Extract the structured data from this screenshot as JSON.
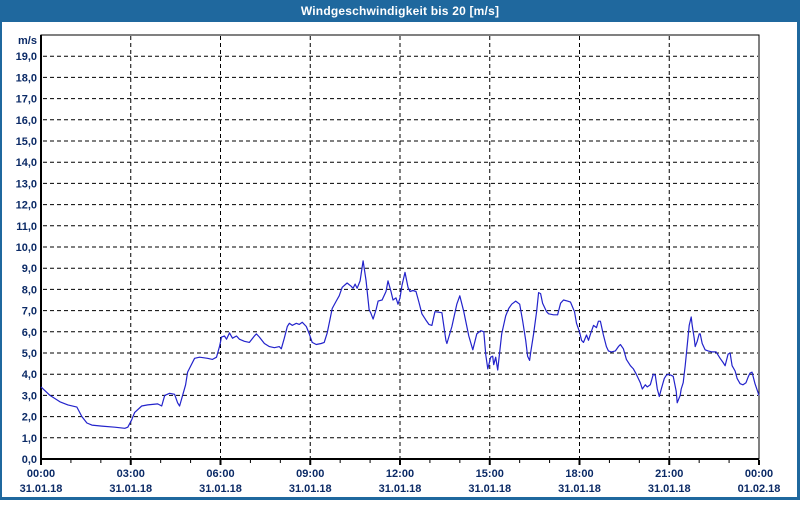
{
  "window": {
    "title": "Windgeschwindigkeit bis 20 [m/s]"
  },
  "colors": {
    "titlebar_bg": "#1f689e",
    "window_border": "#1f689e",
    "plot_bg": "#ffffff",
    "grid_color": "#000000",
    "axis_color": "#000000",
    "label_color": "#0b2a66",
    "line_color": "#2323cb"
  },
  "chart_data": {
    "type": "line",
    "title": "Windgeschwindigkeit bis 20 [m/s]",
    "ylabel": "m/s",
    "xlabel": "",
    "ylim": [
      0,
      20
    ],
    "x_minutes_range": [
      0,
      1440
    ],
    "grid": "dashed",
    "legend": "none",
    "y_unit_label": "m/s",
    "y_tick_labels": [
      "0,0",
      "1,0",
      "2,0",
      "3,0",
      "4,0",
      "5,0",
      "6,0",
      "7,0",
      "8,0",
      "9,0",
      "10,0",
      "11,0",
      "12,0",
      "13,0",
      "14,0",
      "15,0",
      "16,0",
      "17,0",
      "18,0",
      "19,0"
    ],
    "x_ticks": [
      {
        "h": 0,
        "time": "00:00",
        "date": "31.01.18"
      },
      {
        "h": 3,
        "time": "03:00",
        "date": "31.01.18"
      },
      {
        "h": 6,
        "time": "06:00",
        "date": "31.01.18"
      },
      {
        "h": 9,
        "time": "09:00",
        "date": "31.01.18"
      },
      {
        "h": 12,
        "time": "12:00",
        "date": "31.01.18"
      },
      {
        "h": 15,
        "time": "15:00",
        "date": "31.01.18"
      },
      {
        "h": 18,
        "time": "18:00",
        "date": "31.01.18"
      },
      {
        "h": 21,
        "time": "21:00",
        "date": "31.01.18"
      },
      {
        "h": 24,
        "time": "00:00",
        "date": "01.02.18"
      }
    ],
    "series": [
      {
        "name": "Windgeschwindigkeit",
        "points": [
          [
            0,
            3.4
          ],
          [
            18,
            3.0
          ],
          [
            38,
            2.7
          ],
          [
            54,
            2.55
          ],
          [
            72,
            2.45
          ],
          [
            82,
            2.0
          ],
          [
            92,
            1.7
          ],
          [
            102,
            1.6
          ],
          [
            122,
            1.55
          ],
          [
            148,
            1.5
          ],
          [
            168,
            1.45
          ],
          [
            174,
            1.5
          ],
          [
            182,
            1.85
          ],
          [
            188,
            2.2
          ],
          [
            202,
            2.5
          ],
          [
            214,
            2.55
          ],
          [
            234,
            2.6
          ],
          [
            242,
            2.5
          ],
          [
            248,
            3.0
          ],
          [
            258,
            3.1
          ],
          [
            268,
            3.05
          ],
          [
            274,
            2.65
          ],
          [
            278,
            2.5
          ],
          [
            284,
            3.0
          ],
          [
            290,
            3.5
          ],
          [
            294,
            4.1
          ],
          [
            308,
            4.75
          ],
          [
            318,
            4.8
          ],
          [
            334,
            4.75
          ],
          [
            344,
            4.7
          ],
          [
            352,
            4.8
          ],
          [
            358,
            5.3
          ],
          [
            362,
            5.75
          ],
          [
            368,
            5.8
          ],
          [
            372,
            5.65
          ],
          [
            378,
            5.95
          ],
          [
            384,
            5.7
          ],
          [
            392,
            5.8
          ],
          [
            398,
            5.65
          ],
          [
            408,
            5.55
          ],
          [
            418,
            5.5
          ],
          [
            428,
            5.8
          ],
          [
            432,
            5.9
          ],
          [
            438,
            5.75
          ],
          [
            448,
            5.45
          ],
          [
            458,
            5.3
          ],
          [
            468,
            5.25
          ],
          [
            478,
            5.3
          ],
          [
            482,
            5.2
          ],
          [
            488,
            5.7
          ],
          [
            494,
            6.25
          ],
          [
            498,
            6.4
          ],
          [
            504,
            6.3
          ],
          [
            512,
            6.4
          ],
          [
            518,
            6.35
          ],
          [
            524,
            6.45
          ],
          [
            532,
            6.25
          ],
          [
            538,
            5.9
          ],
          [
            544,
            5.5
          ],
          [
            552,
            5.4
          ],
          [
            562,
            5.45
          ],
          [
            568,
            5.5
          ],
          [
            574,
            5.95
          ],
          [
            578,
            6.4
          ],
          [
            584,
            7.1
          ],
          [
            592,
            7.45
          ],
          [
            598,
            7.7
          ],
          [
            604,
            8.1
          ],
          [
            614,
            8.3
          ],
          [
            622,
            8.15
          ],
          [
            626,
            8.05
          ],
          [
            630,
            8.25
          ],
          [
            634,
            8.05
          ],
          [
            640,
            8.4
          ],
          [
            646,
            9.35
          ],
          [
            652,
            8.4
          ],
          [
            658,
            7.05
          ],
          [
            662,
            6.85
          ],
          [
            666,
            6.6
          ],
          [
            672,
            7.05
          ],
          [
            676,
            7.45
          ],
          [
            684,
            7.5
          ],
          [
            692,
            7.9
          ],
          [
            696,
            8.4
          ],
          [
            702,
            7.9
          ],
          [
            706,
            7.5
          ],
          [
            712,
            7.6
          ],
          [
            716,
            7.3
          ],
          [
            720,
            7.6
          ],
          [
            724,
            8.2
          ],
          [
            730,
            8.8
          ],
          [
            736,
            8.1
          ],
          [
            740,
            7.9
          ],
          [
            746,
            7.95
          ],
          [
            752,
            7.9
          ],
          [
            758,
            7.4
          ],
          [
            764,
            6.85
          ],
          [
            772,
            6.55
          ],
          [
            778,
            6.35
          ],
          [
            784,
            6.3
          ],
          [
            790,
            6.95
          ],
          [
            804,
            6.9
          ],
          [
            812,
            5.6
          ],
          [
            814,
            5.45
          ],
          [
            824,
            6.25
          ],
          [
            834,
            7.3
          ],
          [
            840,
            7.7
          ],
          [
            848,
            6.95
          ],
          [
            858,
            5.8
          ],
          [
            866,
            5.15
          ],
          [
            874,
            5.9
          ],
          [
            882,
            6.05
          ],
          [
            888,
            6.0
          ],
          [
            892,
            4.9
          ],
          [
            896,
            4.25
          ],
          [
            902,
            4.8
          ],
          [
            906,
            4.85
          ],
          [
            908,
            4.45
          ],
          [
            912,
            4.8
          ],
          [
            916,
            4.2
          ],
          [
            924,
            5.9
          ],
          [
            932,
            6.75
          ],
          [
            938,
            7.1
          ],
          [
            944,
            7.3
          ],
          [
            952,
            7.45
          ],
          [
            960,
            7.3
          ],
          [
            966,
            6.5
          ],
          [
            972,
            5.6
          ],
          [
            976,
            4.85
          ],
          [
            980,
            4.65
          ],
          [
            982,
            5.0
          ],
          [
            988,
            5.9
          ],
          [
            994,
            6.95
          ],
          [
            998,
            7.85
          ],
          [
            1002,
            7.8
          ],
          [
            1006,
            7.35
          ],
          [
            1014,
            6.95
          ],
          [
            1018,
            6.85
          ],
          [
            1028,
            6.8
          ],
          [
            1036,
            6.8
          ],
          [
            1042,
            7.35
          ],
          [
            1048,
            7.5
          ],
          [
            1056,
            7.45
          ],
          [
            1062,
            7.4
          ],
          [
            1070,
            6.95
          ],
          [
            1074,
            6.4
          ],
          [
            1080,
            6.0
          ],
          [
            1084,
            5.6
          ],
          [
            1088,
            5.5
          ],
          [
            1094,
            5.85
          ],
          [
            1098,
            5.6
          ],
          [
            1102,
            5.9
          ],
          [
            1108,
            6.3
          ],
          [
            1114,
            6.2
          ],
          [
            1118,
            6.5
          ],
          [
            1122,
            6.5
          ],
          [
            1128,
            5.85
          ],
          [
            1134,
            5.3
          ],
          [
            1138,
            5.1
          ],
          [
            1144,
            5.05
          ],
          [
            1152,
            5.1
          ],
          [
            1158,
            5.3
          ],
          [
            1162,
            5.4
          ],
          [
            1168,
            5.2
          ],
          [
            1174,
            4.7
          ],
          [
            1182,
            4.4
          ],
          [
            1188,
            4.25
          ],
          [
            1194,
            4.0
          ],
          [
            1202,
            3.6
          ],
          [
            1206,
            3.3
          ],
          [
            1212,
            3.5
          ],
          [
            1216,
            3.4
          ],
          [
            1222,
            3.5
          ],
          [
            1228,
            4.0
          ],
          [
            1232,
            3.95
          ],
          [
            1236,
            3.3
          ],
          [
            1240,
            2.95
          ],
          [
            1244,
            3.3
          ],
          [
            1250,
            3.8
          ],
          [
            1254,
            3.95
          ],
          [
            1258,
            4.0
          ],
          [
            1264,
            3.95
          ],
          [
            1268,
            3.9
          ],
          [
            1274,
            3.2
          ],
          [
            1276,
            2.65
          ],
          [
            1282,
            3.0
          ],
          [
            1284,
            3.3
          ],
          [
            1288,
            3.6
          ],
          [
            1292,
            4.4
          ],
          [
            1296,
            5.35
          ],
          [
            1300,
            6.3
          ],
          [
            1304,
            6.7
          ],
          [
            1306,
            6.3
          ],
          [
            1310,
            5.7
          ],
          [
            1312,
            5.3
          ],
          [
            1316,
            5.55
          ],
          [
            1320,
            5.9
          ],
          [
            1322,
            5.9
          ],
          [
            1326,
            5.45
          ],
          [
            1332,
            5.15
          ],
          [
            1338,
            5.1
          ],
          [
            1346,
            5.05
          ],
          [
            1354,
            5.05
          ],
          [
            1362,
            4.75
          ],
          [
            1368,
            4.55
          ],
          [
            1372,
            4.4
          ],
          [
            1378,
            4.95
          ],
          [
            1382,
            5.0
          ],
          [
            1386,
            4.4
          ],
          [
            1392,
            4.15
          ],
          [
            1396,
            3.8
          ],
          [
            1402,
            3.55
          ],
          [
            1408,
            3.5
          ],
          [
            1414,
            3.6
          ],
          [
            1418,
            3.85
          ],
          [
            1422,
            4.05
          ],
          [
            1426,
            4.1
          ],
          [
            1432,
            3.55
          ],
          [
            1440,
            3.0
          ]
        ]
      }
    ]
  }
}
